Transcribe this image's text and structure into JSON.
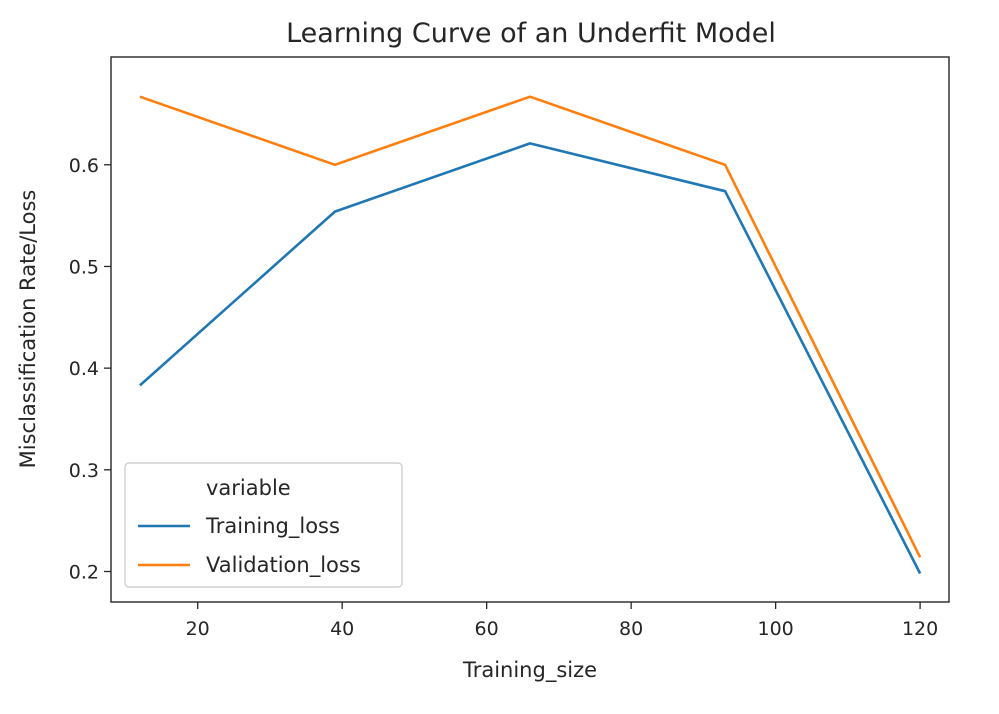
{
  "chart_data": {
    "type": "line",
    "title": "Learning Curve of an Underfit Model",
    "xlabel": "Training_size",
    "ylabel": "Misclassification Rate/Loss",
    "x": [
      12,
      39,
      66,
      93,
      120
    ],
    "series": [
      {
        "name": "Training_loss",
        "color": "#1f77b4",
        "values": [
          0.383,
          0.554,
          0.621,
          0.574,
          0.198
        ]
      },
      {
        "name": "Validation_loss",
        "color": "#ff7f0e",
        "values": [
          0.667,
          0.6,
          0.667,
          0.6,
          0.214
        ]
      }
    ],
    "xlim": [
      8,
      124
    ],
    "ylim": [
      0.17,
      0.706
    ],
    "xticks": [
      20,
      40,
      60,
      80,
      100,
      120
    ],
    "yticks": [
      0.2,
      0.3,
      0.4,
      0.5,
      0.6
    ],
    "xtick_labels": [
      "20",
      "40",
      "60",
      "80",
      "100",
      "120"
    ],
    "ytick_labels": [
      "0.2",
      "0.3",
      "0.4",
      "0.5",
      "0.6"
    ],
    "grid": false,
    "legend": {
      "title": "variable",
      "placement": "lower-left"
    }
  }
}
